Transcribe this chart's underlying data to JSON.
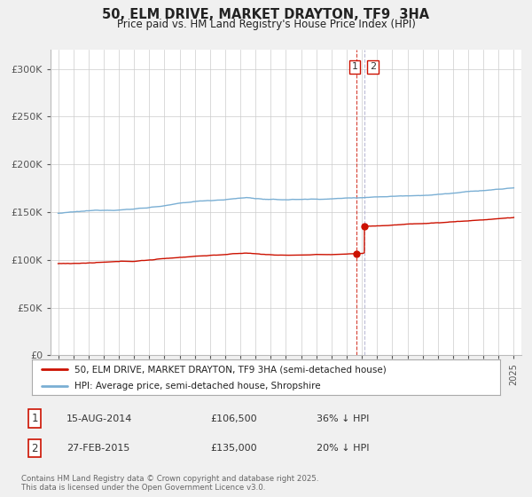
{
  "title": "50, ELM DRIVE, MARKET DRAYTON, TF9  3HA",
  "subtitle": "Price paid vs. HM Land Registry's House Price Index (HPI)",
  "legend_line1": "50, ELM DRIVE, MARKET DRAYTON, TF9 3HA (semi-detached house)",
  "legend_line2": "HPI: Average price, semi-detached house, Shropshire",
  "footer": "Contains HM Land Registry data © Crown copyright and database right 2025.\nThis data is licensed under the Open Government Licence v3.0.",
  "annotation1_date": "15-AUG-2014",
  "annotation1_price": "£106,500",
  "annotation1_hpi": "36% ↓ HPI",
  "annotation2_date": "27-FEB-2015",
  "annotation2_price": "£135,000",
  "annotation2_hpi": "20% ↓ HPI",
  "purchase1_x": 2014.62,
  "purchase1_y": 106500,
  "purchase2_x": 2015.16,
  "purchase2_y": 135000,
  "vline1_x": 2014.62,
  "vline2_x": 2015.16,
  "hpi_color": "#7aafd4",
  "price_color": "#cc1100",
  "vline_red_color": "#cc1100",
  "vline_gray_color": "#aaaacc",
  "dot_color": "#cc1100",
  "ylim_min": 0,
  "ylim_max": 320000,
  "xlim_min": 1994.5,
  "xlim_max": 2025.5,
  "yticks": [
    0,
    50000,
    100000,
    150000,
    200000,
    250000,
    300000
  ],
  "ytick_labels": [
    "£0",
    "£50K",
    "£100K",
    "£150K",
    "£200K",
    "£250K",
    "£300K"
  ],
  "background_color": "#f0f0f0",
  "plot_bg_color": "#ffffff",
  "grid_color": "#cccccc"
}
